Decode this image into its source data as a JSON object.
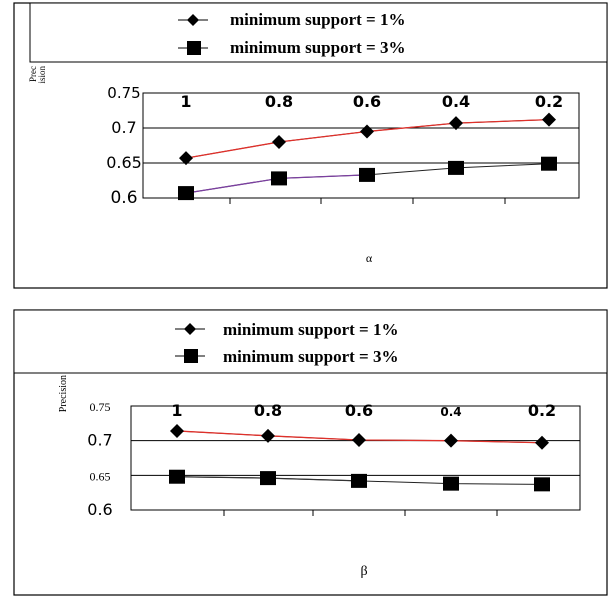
{
  "chart_data": [
    {
      "type": "line",
      "categories": [
        "1",
        "0.8",
        "0.6",
        "0.4",
        "0.2"
      ],
      "xlabel": "α",
      "ylabel": "Prec ision",
      "yticks": [
        "0.75",
        "0.7",
        "0.65",
        "0.6"
      ],
      "ylim": [
        0.6,
        0.75
      ],
      "grid": "horizontal",
      "legend": "top",
      "series": [
        {
          "name": "minimum support = 1%",
          "marker": "diamond",
          "line_color": "#e0302a",
          "values": [
            0.657,
            0.68,
            0.695,
            0.707,
            0.712
          ]
        },
        {
          "name": "minimum support = 3%",
          "marker": "square",
          "line_color": "#7b3fa0",
          "values": [
            0.607,
            0.628,
            0.633,
            0.643,
            0.649
          ]
        }
      ]
    },
    {
      "type": "line",
      "categories": [
        "1",
        "0.8",
        "0.6",
        "0.4",
        "0.2"
      ],
      "xlabel": "β",
      "ylabel": "Precision",
      "yticks": [
        "0.75",
        "0.7",
        "0.65",
        "0.6"
      ],
      "ylim": [
        0.6,
        0.75
      ],
      "grid": "horizontal",
      "legend": "top",
      "series": [
        {
          "name": "minimum support = 1%",
          "marker": "diamond",
          "line_color": "#e0302a",
          "values": [
            0.714,
            0.707,
            0.701,
            0.7,
            0.697
          ]
        },
        {
          "name": "minimum support = 3%",
          "marker": "square",
          "line_color": "#333333",
          "values": [
            0.648,
            0.646,
            0.642,
            0.638,
            0.637
          ]
        }
      ]
    }
  ]
}
